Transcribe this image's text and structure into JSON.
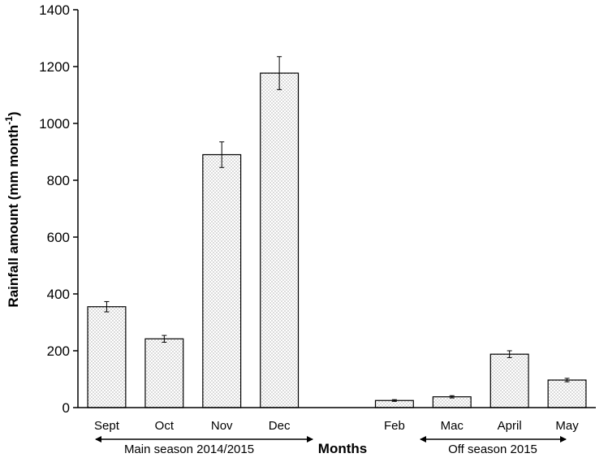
{
  "chart_data": {
    "type": "bar",
    "title": "",
    "xlabel": "Months",
    "ylabel": "Rainfall  amount (mm month",
    "ylabel_sup": "-1",
    "ylabel_end": ")",
    "ylim": [
      0,
      1400
    ],
    "yticks": [
      0,
      200,
      400,
      600,
      800,
      1000,
      1200,
      1400
    ],
    "grid": false,
    "categories": [
      "Sept",
      "Oct",
      "Nov",
      "Dec",
      "",
      "Feb",
      "Mac",
      "April",
      "May"
    ],
    "values": [
      355,
      242,
      890,
      1177,
      null,
      25,
      38,
      188,
      97
    ],
    "errors": [
      18,
      12,
      45,
      58,
      null,
      3,
      4,
      12,
      6
    ],
    "annotations": {
      "main_season": "Main season 2014/2015",
      "off_season": "Off season 2015"
    }
  }
}
